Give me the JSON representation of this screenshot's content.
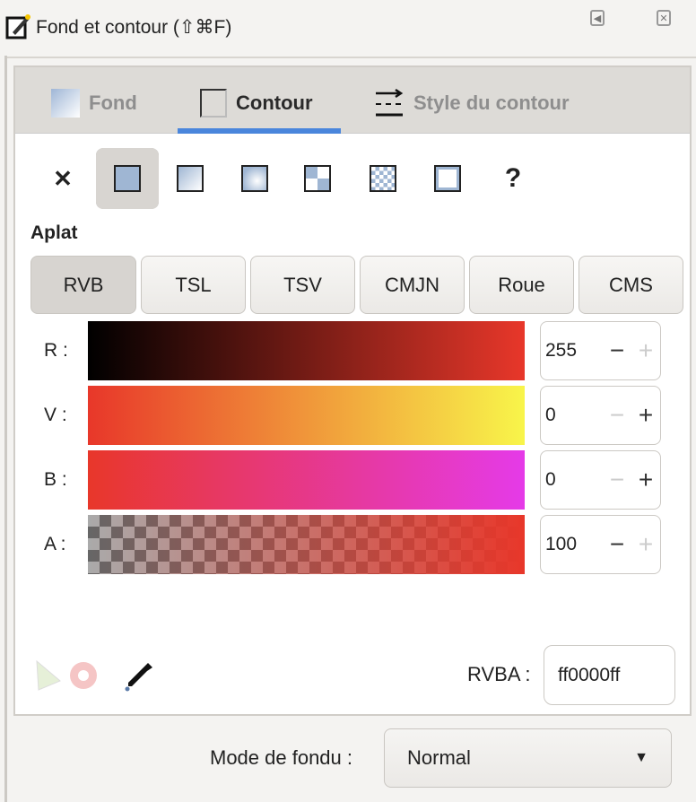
{
  "window": {
    "title": "Fond et contour (⇧⌘F)"
  },
  "tabs": [
    {
      "label": "Fond",
      "active": false
    },
    {
      "label": "Contour",
      "active": true
    },
    {
      "label": "Style du contour",
      "active": false
    }
  ],
  "paint_types": [
    "none",
    "flat",
    "linear-gradient",
    "radial-gradient",
    "pattern",
    "swatch",
    "mesh",
    "unset"
  ],
  "paint_type_selected": "flat",
  "section_label": "Aplat",
  "color_models": [
    "RVB",
    "TSL",
    "TSV",
    "CMJN",
    "Roue",
    "CMS"
  ],
  "color_model_selected": "RVB",
  "channels": [
    {
      "label": "R :",
      "value": "255"
    },
    {
      "label": "V :",
      "value": "0"
    },
    {
      "label": "B :",
      "value": "0"
    },
    {
      "label": "A :",
      "value": "100"
    }
  ],
  "rvba": {
    "label": "RVBA :",
    "value": "ff0000ff"
  },
  "blend": {
    "label": "Mode de fondu :",
    "value": "Normal"
  },
  "colors": {
    "accent": "#4a86dc",
    "current": "#e8372a"
  }
}
